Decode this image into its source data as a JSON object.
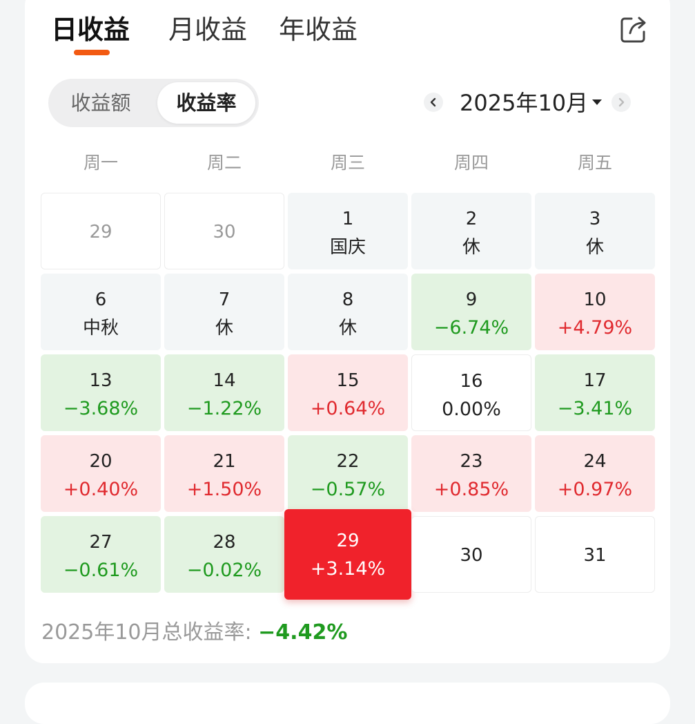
{
  "tabs": [
    {
      "label": "日收益",
      "active": true
    },
    {
      "label": "月收益",
      "active": false
    },
    {
      "label": "年收益",
      "active": false
    }
  ],
  "segment": {
    "amount_label": "收益额",
    "rate_label": "收益率",
    "active": "rate"
  },
  "month": {
    "label": "2025年10月"
  },
  "weekdays": [
    "周一",
    "周二",
    "周三",
    "周四",
    "周五"
  ],
  "rows": [
    [
      {
        "day": "29",
        "type": "out"
      },
      {
        "day": "30",
        "type": "out"
      },
      {
        "day": "1",
        "type": "holiday",
        "text": "国庆"
      },
      {
        "day": "2",
        "type": "holiday",
        "text": "休"
      },
      {
        "day": "3",
        "type": "holiday",
        "text": "休"
      }
    ],
    [
      {
        "day": "6",
        "type": "holiday",
        "text": "中秋"
      },
      {
        "day": "7",
        "type": "holiday",
        "text": "休"
      },
      {
        "day": "8",
        "type": "holiday",
        "text": "休"
      },
      {
        "day": "9",
        "type": "loss",
        "text": "−6.74%"
      },
      {
        "day": "10",
        "type": "gain",
        "text": "+4.79%"
      }
    ],
    [
      {
        "day": "13",
        "type": "loss",
        "text": "−3.68%"
      },
      {
        "day": "14",
        "type": "loss",
        "text": "−1.22%"
      },
      {
        "day": "15",
        "type": "gain",
        "text": "+0.64%"
      },
      {
        "day": "16",
        "type": "flat",
        "text": "0.00%"
      },
      {
        "day": "17",
        "type": "loss",
        "text": "−3.41%"
      }
    ],
    [
      {
        "day": "20",
        "type": "gain",
        "text": "+0.40%"
      },
      {
        "day": "21",
        "type": "gain",
        "text": "+1.50%"
      },
      {
        "day": "22",
        "type": "loss",
        "text": "−0.57%"
      },
      {
        "day": "23",
        "type": "gain",
        "text": "+0.85%"
      },
      {
        "day": "24",
        "type": "gain",
        "text": "+0.97%"
      }
    ],
    [
      {
        "day": "27",
        "type": "loss",
        "text": "−0.61%"
      },
      {
        "day": "28",
        "type": "loss",
        "text": "−0.02%"
      },
      {
        "day": "29",
        "type": "today",
        "text": "+3.14%"
      },
      {
        "day": "30",
        "type": "future"
      },
      {
        "day": "31",
        "type": "future"
      }
    ]
  ],
  "summary": {
    "label": "2025年10月总收益率: ",
    "value": "−4.42%"
  },
  "colors": {
    "accent": "#f25a12",
    "gain": "#e02a2f",
    "loss": "#1f9a1f",
    "today_bg": "#f0222b"
  }
}
